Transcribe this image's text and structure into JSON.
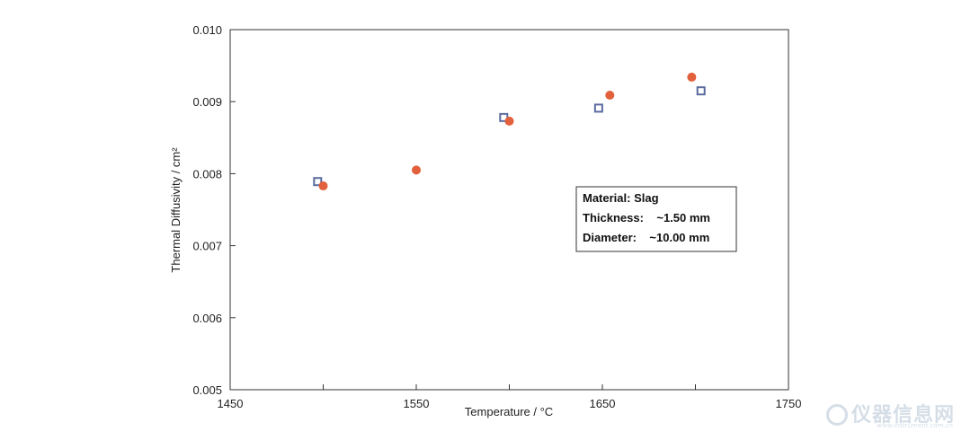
{
  "chart_data": {
    "type": "scatter",
    "title": "",
    "xlabel": "Temperature / °C",
    "ylabel": "Thermal Diffusivity / cm²",
    "xlim": [
      1450,
      1750
    ],
    "ylim": [
      0.005,
      0.01
    ],
    "x_ticks": [
      "1450",
      "1550",
      "1650",
      "1750"
    ],
    "x_minor_ticks": [
      1500,
      1600,
      1700
    ],
    "y_ticks": [
      "0.005",
      "0.006",
      "0.007",
      "0.008",
      "0.009",
      "0.010"
    ],
    "grid": false,
    "series": [
      {
        "marker": "open-square",
        "color": "#5b6b9e",
        "points": [
          {
            "x": 1497,
            "y": 0.00789
          },
          {
            "x": 1597,
            "y": 0.00878
          },
          {
            "x": 1648,
            "y": 0.00891
          },
          {
            "x": 1703,
            "y": 0.00915
          }
        ]
      },
      {
        "marker": "filled-circle",
        "color": "#e2603c",
        "points": [
          {
            "x": 1500,
            "y": 0.00783
          },
          {
            "x": 1550,
            "y": 0.00805
          },
          {
            "x": 1600,
            "y": 0.00873
          },
          {
            "x": 1654,
            "y": 0.00909
          },
          {
            "x": 1698,
            "y": 0.00934
          }
        ]
      }
    ],
    "annotation": {
      "lines": [
        "Material: Slag",
        "Thickness:    ~1.50 mm",
        "Diameter:    ~10.00 mm"
      ],
      "placement": "right-middle"
    }
  },
  "watermark": {
    "text": "仪器信息网",
    "sub": "www.instrument.com.cn"
  }
}
